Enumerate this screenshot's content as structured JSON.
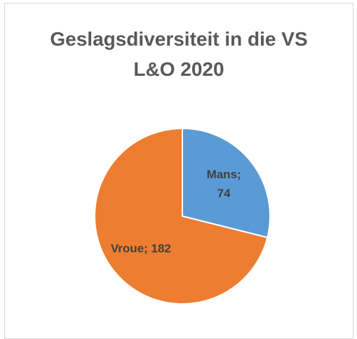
{
  "chart_data": {
    "type": "pie",
    "title": "Geslagsdiversiteit in die VS L&O 2020",
    "categories": [
      "Mans",
      "Vroue"
    ],
    "values": [
      74,
      182
    ],
    "value_labels": [
      "Mans; 74",
      "Vroue; 182"
    ],
    "colors": [
      "#5b9bd5",
      "#ed7d31"
    ]
  }
}
